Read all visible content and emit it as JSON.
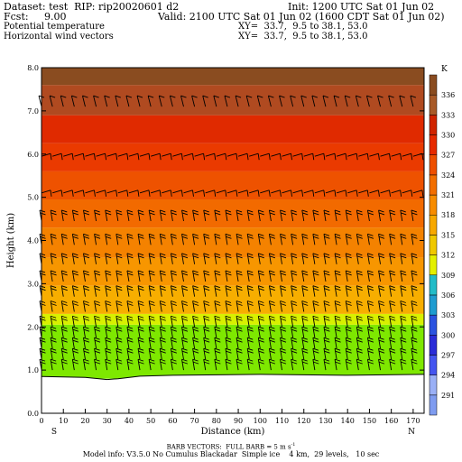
{
  "header": {
    "dataset": "Dataset: test  RIP: rip20020601 d2",
    "init": "Init: 1200 UTC Sat 01 Jun 02",
    "fcst": "Fcst:     9.00",
    "valid": "Valid: 2100 UTC Sat 01 Jun 02 (1600 CDT Sat 01 Jun 02)",
    "field1": "Potential temperature",
    "field1_xy": "XY=  33.7,  9.5 to 38.1, 53.0",
    "field2": "Horizontal wind vectors",
    "field2_xy": "XY=  33.7,  9.5 to 38.1, 53.0"
  },
  "footer": {
    "barb_note": "BARB VECTORS:  FULL BARB = 5 m s",
    "barb_sup": "-1",
    "model_info": "Model info: V3.5.0 No Cumulus Blackadar  Simple ice    4 km,  29 levels,   10 sec"
  },
  "chart_data": {
    "type": "heatmap",
    "xlabel": "Distance (km)",
    "ylabel": "Height (km)",
    "x_ticks": [
      0,
      10,
      20,
      30,
      40,
      50,
      60,
      70,
      80,
      90,
      100,
      110,
      120,
      130,
      140,
      150,
      160,
      170
    ],
    "y_ticks": [
      "0.0",
      "1.0",
      "2.0",
      "3.0",
      "4.0",
      "5.0",
      "6.0",
      "7.0",
      "8.0"
    ],
    "xlim": [
      0,
      175
    ],
    "ylim": [
      0,
      8
    ],
    "left_end_label": "S",
    "right_end_label": "N",
    "colorbar_unit": "K",
    "colorbar_labels": [
      291,
      294,
      297,
      300,
      303,
      306,
      309,
      312,
      315,
      318,
      321,
      324,
      327,
      330,
      333,
      336
    ],
    "colorbar_colors": [
      "#7f9cf0",
      "#9ab0f6",
      "#4455f0",
      "#2a2cd8",
      "#2b53e0",
      "#1f9cd0",
      "#22bcc8",
      "#e4f000",
      "#f0c800",
      "#f7a800",
      "#f78c00",
      "#f26e00",
      "#ee4f00",
      "#e62a00",
      "#d02400",
      "#a85a28",
      "#8a4c20"
    ],
    "terrain_km": [
      [
        0,
        0.85
      ],
      [
        20,
        0.83
      ],
      [
        30,
        0.78
      ],
      [
        35,
        0.8
      ],
      [
        45,
        0.86
      ],
      [
        60,
        0.88
      ],
      [
        100,
        0.9
      ],
      [
        140,
        0.88
      ],
      [
        175,
        0.9
      ]
    ],
    "theta_layers": [
      {
        "bottom": 0.8,
        "top": 2.05,
        "color": "#7ee800"
      },
      {
        "bottom": 2.05,
        "top": 2.3,
        "color": "#d8f000"
      },
      {
        "bottom": 2.3,
        "top": 2.95,
        "color": "#f7ae00"
      },
      {
        "bottom": 2.95,
        "top": 3.6,
        "color": "#f79600"
      },
      {
        "bottom": 3.6,
        "top": 4.3,
        "color": "#f48200"
      },
      {
        "bottom": 4.3,
        "top": 4.95,
        "color": "#f26a00"
      },
      {
        "bottom": 4.95,
        "top": 5.6,
        "color": "#ee5200"
      },
      {
        "bottom": 5.6,
        "top": 6.25,
        "color": "#ea3a00"
      },
      {
        "bottom": 6.25,
        "top": 6.9,
        "color": "#e02a00"
      },
      {
        "bottom": 6.9,
        "top": 7.6,
        "color": "#b04a20"
      },
      {
        "bottom": 7.6,
        "top": 8.0,
        "color": "#8a4c20"
      }
    ],
    "wind_barb_columns_km": [
      0,
      5,
      10,
      15,
      20,
      25,
      30,
      35,
      40,
      45,
      50,
      55,
      60,
      65,
      70,
      75,
      80,
      85,
      90,
      95,
      100,
      105,
      110,
      115,
      120,
      125,
      130,
      135,
      140,
      145,
      150,
      155,
      160,
      165,
      170
    ],
    "wind_barb_levels_km": [
      1.0,
      1.25,
      1.5,
      1.75,
      2.0,
      2.35,
      2.7,
      3.05,
      3.45,
      3.9,
      4.45,
      5.1,
      5.95,
      7.1
    ]
  }
}
